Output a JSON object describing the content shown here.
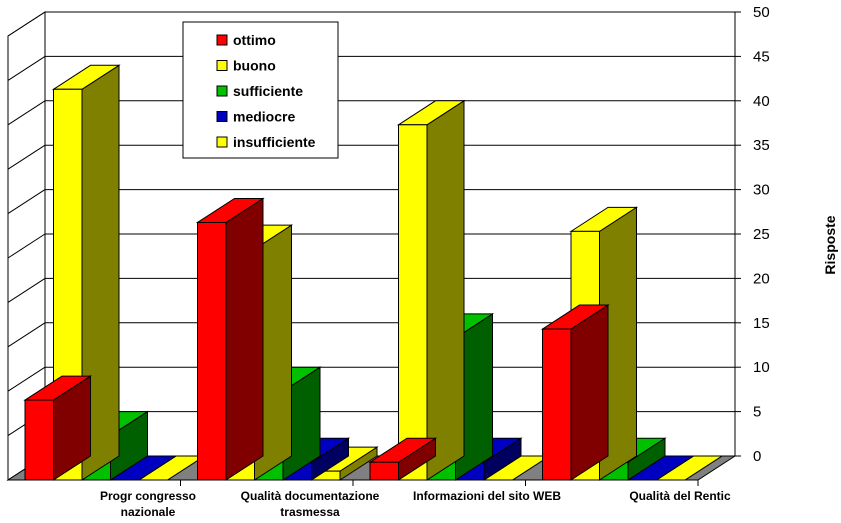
{
  "chart_data": {
    "type": "bar",
    "categories": [
      "Progr congresso nazionale",
      "Qualità documentazione trasmessa",
      "Informazioni del sito WEB",
      "Qualità del Rentic"
    ],
    "category_label_lines": [
      [
        "Progr congresso",
        "nazionale"
      ],
      [
        "Qualità documentazione",
        "trasmessa"
      ],
      [
        "Informazioni del sito WEB"
      ],
      [
        "Qualità del Rentic"
      ]
    ],
    "series": [
      {
        "name": "ottimo",
        "values": [
          9,
          29,
          2,
          17
        ],
        "color": "#ff0000"
      },
      {
        "name": "buono",
        "values": [
          44,
          26,
          40,
          28
        ],
        "color": "#ffff00"
      },
      {
        "name": "sufficiente",
        "values": [
          5,
          10,
          16,
          2
        ],
        "color": "#00c000"
      },
      {
        "name": "mediocre",
        "values": [
          0,
          2,
          2,
          0
        ],
        "color": "#0000c0"
      },
      {
        "name": "insufficiente",
        "values": [
          0,
          1,
          0,
          0
        ],
        "color": "#ffff00"
      }
    ],
    "ylabel": "Risposte",
    "xlabel": "",
    "ylim": [
      0,
      50
    ],
    "yticks": [
      0,
      5,
      10,
      15,
      20,
      25,
      30,
      35,
      40,
      45,
      50
    ],
    "grid": true,
    "legend_position": "top-left-center",
    "three_d": true
  }
}
